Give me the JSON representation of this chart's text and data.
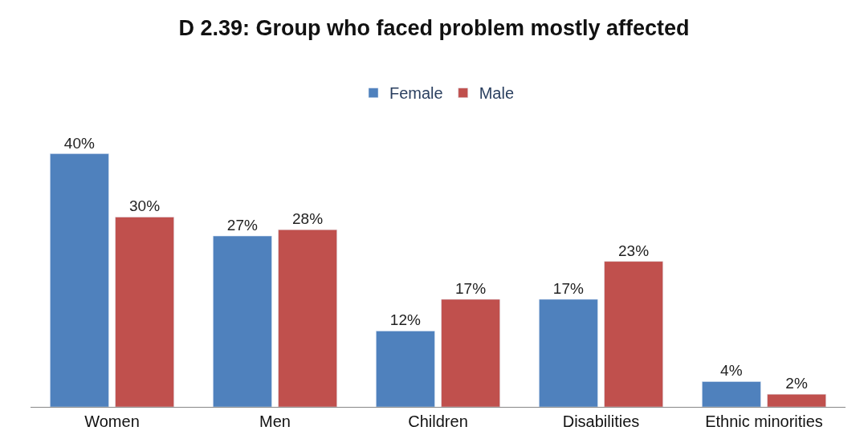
{
  "chart_data": {
    "type": "bar",
    "title": "D 2.39: Group who faced problem mostly affected",
    "categories": [
      "Women",
      "Men",
      "Children",
      "Disabilities",
      "Ethnic minorities"
    ],
    "series": [
      {
        "name": "Female",
        "color": "#4f81bd",
        "values": [
          40,
          27,
          12,
          17,
          4
        ],
        "value_labels": [
          "40%",
          "27%",
          "12%",
          "17%",
          "4%"
        ]
      },
      {
        "name": "Male",
        "color": "#c0504d",
        "values": [
          30,
          28,
          17,
          23,
          2
        ],
        "value_labels": [
          "30%",
          "28%",
          "17%",
          "23%",
          "2%"
        ]
      }
    ],
    "legend": "top"
  }
}
